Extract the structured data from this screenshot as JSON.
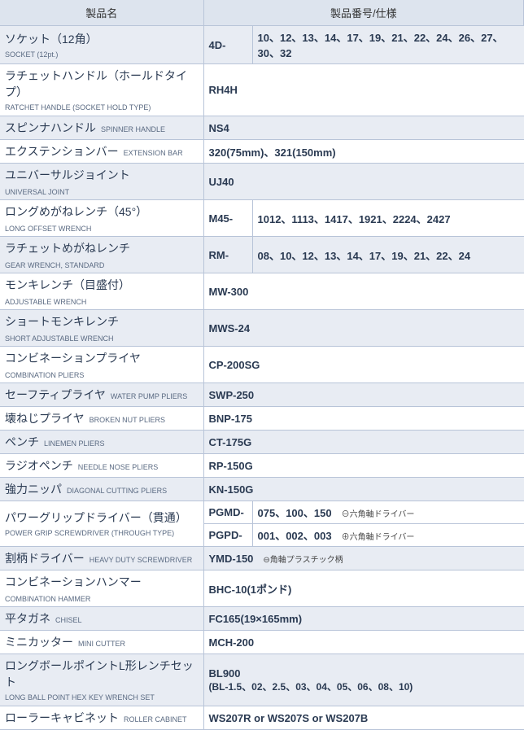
{
  "header": {
    "col1": "製品名",
    "col2": "製品番号/仕様"
  },
  "rows": [
    {
      "alt": true,
      "stack": true,
      "jp": "ソケット（12角）",
      "en": "SOCKET (12pt.)",
      "spec1": "4D-",
      "spec2": "10、12、13、14、17、19、21、22、24、26、27、30、32"
    },
    {
      "alt": false,
      "stack": true,
      "jp": "ラチェットハンドル（ホールドタイプ）",
      "en": "RATCHET HANDLE (SOCKET HOLD TYPE)",
      "merge": true,
      "spec2": "RH4H"
    },
    {
      "alt": true,
      "stack": false,
      "jp": "スピンナハンドル",
      "en": "SPINNER HANDLE",
      "merge": true,
      "spec2": "NS4"
    },
    {
      "alt": false,
      "stack": false,
      "jp": "エクステンションバー",
      "en": "EXTENSION BAR",
      "merge": true,
      "spec2": "320(75mm)、321(150mm)"
    },
    {
      "alt": true,
      "stack": false,
      "jp": "ユニバーサルジョイント",
      "en": "UNIVERSAL JOINT",
      "merge": true,
      "spec2": "UJ40"
    },
    {
      "alt": false,
      "stack": false,
      "jp": "ロングめがねレンチ（45°）",
      "en": "LONG OFFSET WRENCH",
      "spec1": "M45-",
      "spec2": "1012、1113、1417、1921、2224、2427"
    },
    {
      "alt": true,
      "stack": false,
      "jp": "ラチェットめがねレンチ",
      "en": "GEAR WRENCH, STANDARD",
      "spec1": "RM-",
      "spec2": "08、10、12、13、14、17、19、21、22、24"
    },
    {
      "alt": false,
      "stack": false,
      "jp": "モンキレンチ（目盛付）",
      "en": "ADJUSTABLE WRENCH",
      "merge": true,
      "spec2": "MW-300"
    },
    {
      "alt": true,
      "stack": false,
      "jp": "ショートモンキレンチ",
      "en": "SHORT ADJUSTABLE WRENCH",
      "merge": true,
      "spec2": "MWS-24"
    },
    {
      "alt": false,
      "stack": false,
      "jp": "コンビネーションプライヤ",
      "en": "COMBINATION PLIERS",
      "merge": true,
      "spec2": "CP-200SG"
    },
    {
      "alt": true,
      "stack": false,
      "jp": "セーフティプライヤ",
      "en": "WATER PUMP PLIERS",
      "merge": true,
      "spec2": "SWP-250"
    },
    {
      "alt": false,
      "stack": false,
      "jp": "壊ねじプライヤ",
      "en": "BROKEN NUT PLIERS",
      "merge": true,
      "spec2": "BNP-175"
    },
    {
      "alt": true,
      "stack": false,
      "jp": "ペンチ",
      "en": "LINEMEN PLIERS",
      "merge": true,
      "spec2": "CT-175G"
    },
    {
      "alt": false,
      "stack": false,
      "jp": "ラジオペンチ",
      "en": "NEEDLE NOSE PLIERS",
      "merge": true,
      "spec2": "RP-150G"
    },
    {
      "alt": true,
      "stack": false,
      "jp": "強力ニッパ",
      "en": "DIAGONAL CUTTING PLIERS",
      "merge": true,
      "spec2": "KN-150G"
    },
    {
      "alt": false,
      "stack": true,
      "jp": "パワーグリップドライバー（貫通）",
      "en": "POWER GRIP SCREWDRIVER (THROUGH TYPE)",
      "rowspan": 2,
      "spec1": "PGMD-",
      "spec2": "075、100、150",
      "note": "⊖六角軸ドライバー"
    },
    {
      "alt": false,
      "sub": true,
      "spec1": "PGPD-",
      "spec2": "001、002、003",
      "note": "⊕六角軸ドライバー"
    },
    {
      "alt": true,
      "stack": false,
      "jp": "割柄ドライバー",
      "en": "HEAVY DUTY SCREWDRIVER",
      "merge": true,
      "spec2": "YMD-150",
      "note": "⊖角軸プラスチック柄"
    },
    {
      "alt": false,
      "stack": false,
      "jp": "コンビネーションハンマー",
      "en": "COMBINATION HAMMER",
      "merge": true,
      "spec2": "BHC-10(1ポンド)"
    },
    {
      "alt": true,
      "stack": false,
      "jp": "平タガネ",
      "en": "CHISEL",
      "merge": true,
      "spec2": "FC165(19×165mm)"
    },
    {
      "alt": false,
      "stack": false,
      "jp": "ミニカッター",
      "en": "MINI CUTTER",
      "merge": true,
      "spec2": "MCH-200"
    },
    {
      "alt": true,
      "stack": true,
      "jp": "ロングボールポイントL形レンチセット",
      "en": "LONG BALL POINT HEX KEY WRENCH SET",
      "merge": true,
      "spec2": "BL900\n(BL-1.5、02、2.5、03、04、05、06、08、10)"
    },
    {
      "alt": false,
      "stack": false,
      "jp": "ローラーキャビネット",
      "en": "ROLLER CABINET",
      "merge": true,
      "spec2": "WS207R or WS207S or WS207B"
    }
  ]
}
